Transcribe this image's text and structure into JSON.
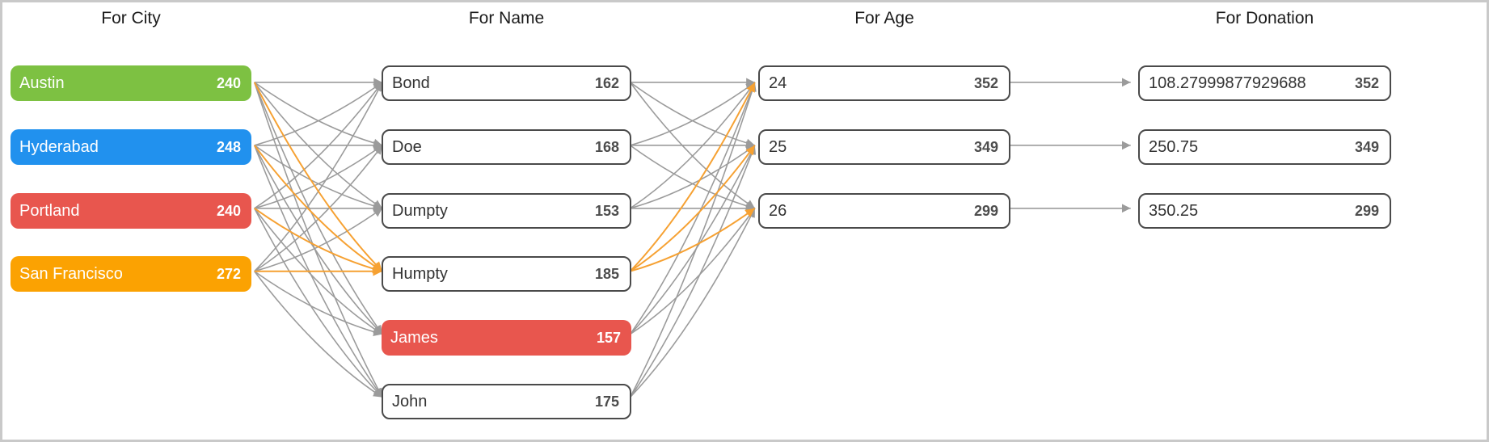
{
  "chart_data": {
    "type": "grouped-flow-diagram",
    "columns": [
      {
        "title": "For City",
        "items": [
          {
            "label": "Austin",
            "count": "240",
            "fill": "#7DC142"
          },
          {
            "label": "Hyderabad",
            "count": "248",
            "fill": "#2191EE"
          },
          {
            "label": "Portland",
            "count": "240",
            "fill": "#E8564E"
          },
          {
            "label": "San Francisco",
            "count": "272",
            "fill": "#FBA202"
          }
        ]
      },
      {
        "title": "For Name",
        "items": [
          {
            "label": "Bond",
            "count": "162"
          },
          {
            "label": "Doe",
            "count": "168"
          },
          {
            "label": "Dumpty",
            "count": "153"
          },
          {
            "label": "Humpty",
            "count": "185"
          },
          {
            "label": "James",
            "count": "157",
            "fill": "#E8564E"
          },
          {
            "label": "John",
            "count": "175"
          }
        ]
      },
      {
        "title": "For Age",
        "items": [
          {
            "label": "24",
            "count": "352"
          },
          {
            "label": "25",
            "count": "349"
          },
          {
            "label": "26",
            "count": "299"
          }
        ]
      },
      {
        "title": "For Donation",
        "items": [
          {
            "label": "108.27999877929688",
            "count": "352"
          },
          {
            "label": "250.75",
            "count": "349"
          },
          {
            "label": "350.25",
            "count": "299"
          }
        ]
      }
    ],
    "links": [
      {
        "from_col": 0,
        "to_col": 1,
        "pattern": "all_to_all",
        "highlighted": {
          "to_items": [
            3
          ]
        }
      },
      {
        "from_col": 1,
        "to_col": 2,
        "pattern": "all_to_all",
        "highlighted": {
          "from_items": [
            3
          ]
        }
      },
      {
        "from_col": 2,
        "to_col": 3,
        "pattern": "one_to_one"
      }
    ],
    "colors": {
      "link": "#9B9B9B",
      "link_highlight": "#F6A132",
      "node_border": "#4A4A4A",
      "label_text": "#333333",
      "count_text": "#4D4D4D",
      "header_text": "#1B1B1B",
      "frame_border": "#C9C9C9",
      "background": "#FFFFFF"
    }
  }
}
